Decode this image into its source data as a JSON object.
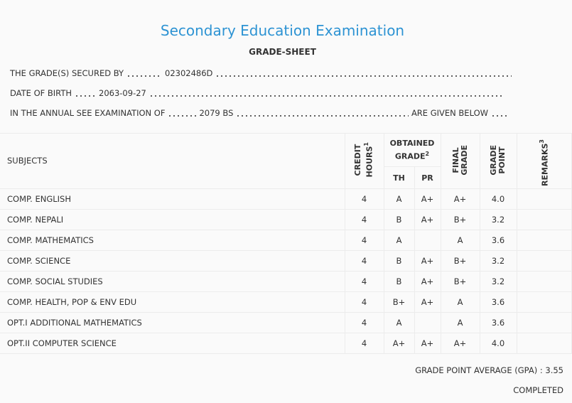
{
  "header": {
    "title": "Secondary Education Examination",
    "subtitle": "GRADE-SHEET"
  },
  "info": [
    {
      "label": "THE GRADE(S) SECURED BY",
      "value": "02302486D"
    },
    {
      "label": "DATE OF BIRTH",
      "value": "2063-09-27"
    },
    {
      "label": "IN THE ANNUAL SEE EXAMINATION OF",
      "value": "2079 BS",
      "tail": "ARE GIVEN BELOW"
    }
  ],
  "table": {
    "columns": {
      "subjects": "SUBJECTS",
      "credit_hours": {
        "lines": [
          "CREDIT",
          "HOURS"
        ],
        "note": "1"
      },
      "obtained_grade": {
        "lines": [
          "OBTAINED",
          "GRADE"
        ],
        "note": "2"
      },
      "th": "TH",
      "pr": "PR",
      "final_grade": {
        "lines": [
          "FINAL",
          "GRADE"
        ]
      },
      "grade_point": {
        "lines": [
          "GRADE",
          "POINT"
        ]
      },
      "remarks": {
        "lines": [
          "REMARKS"
        ],
        "note": "3"
      }
    },
    "rows": [
      [
        "COMP. ENGLISH",
        4,
        "A",
        "A+",
        "A+",
        "4.0"
      ],
      [
        "COMP. NEPALI",
        4,
        "B",
        "A+",
        "B+",
        "3.2"
      ],
      [
        "COMP. MATHEMATICS",
        4,
        "A",
        null,
        "A",
        "3.6"
      ],
      [
        "COMP. SCIENCE",
        4,
        "B",
        "A+",
        "B+",
        "3.2"
      ],
      [
        "COMP. SOCIAL STUDIES",
        4,
        "B",
        "A+",
        "B+",
        "3.2"
      ],
      [
        "COMP. HEALTH, POP & ENV EDU",
        4,
        "B+",
        "A+",
        "A",
        "3.6"
      ],
      [
        "OPT.I ADDITIONAL MATHEMATICS",
        4,
        "A",
        null,
        "A",
        "3.6"
      ],
      [
        "OPT.II COMPUTER SCIENCE",
        4,
        "A+",
        "A+",
        "A+",
        "4.0"
      ]
    ]
  },
  "footer": {
    "gpa_label": "GRADE POINT AVERAGE (GPA) :",
    "gpa": "3.55",
    "status": "COMPLETED"
  }
}
